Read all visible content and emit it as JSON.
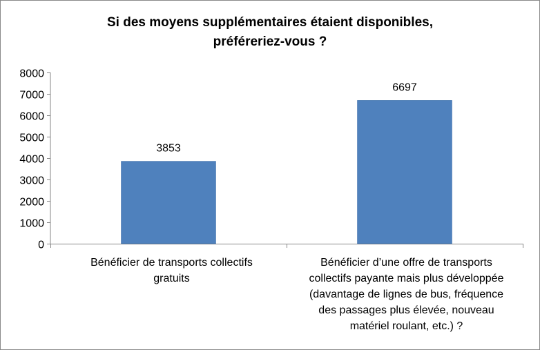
{
  "chart_data": {
    "type": "bar",
    "title_lines": [
      "Si des moyens supplémentaires étaient disponibles,",
      "préféreriez-vous ?"
    ],
    "categories": [
      {
        "label_lines": [
          "Bénéficier de transports collectifs",
          "gratuits"
        ]
      },
      {
        "label_lines": [
          "Bénéficier d’une offre de transports",
          "collectifs payante mais plus développée",
          "(davantage de lignes de bus, fréquence",
          "des passages plus élevée, nouveau",
          "matériel roulant, etc.) ?"
        ]
      }
    ],
    "values": [
      3853,
      6697
    ],
    "value_labels": [
      "3853",
      "6697"
    ],
    "ylim": [
      0,
      8000
    ],
    "yticks": [
      "0",
      "1000",
      "2000",
      "3000",
      "4000",
      "5000",
      "6000",
      "7000",
      "8000"
    ],
    "ytick_values": [
      0,
      1000,
      2000,
      3000,
      4000,
      5000,
      6000,
      7000,
      8000
    ],
    "grid": false,
    "legend": "none",
    "xlabel": "",
    "ylabel": "",
    "colors": {
      "bar": "#4F81BD",
      "bar_border": "#3A6AA5",
      "axis": "#868686",
      "text": "#000000"
    }
  }
}
